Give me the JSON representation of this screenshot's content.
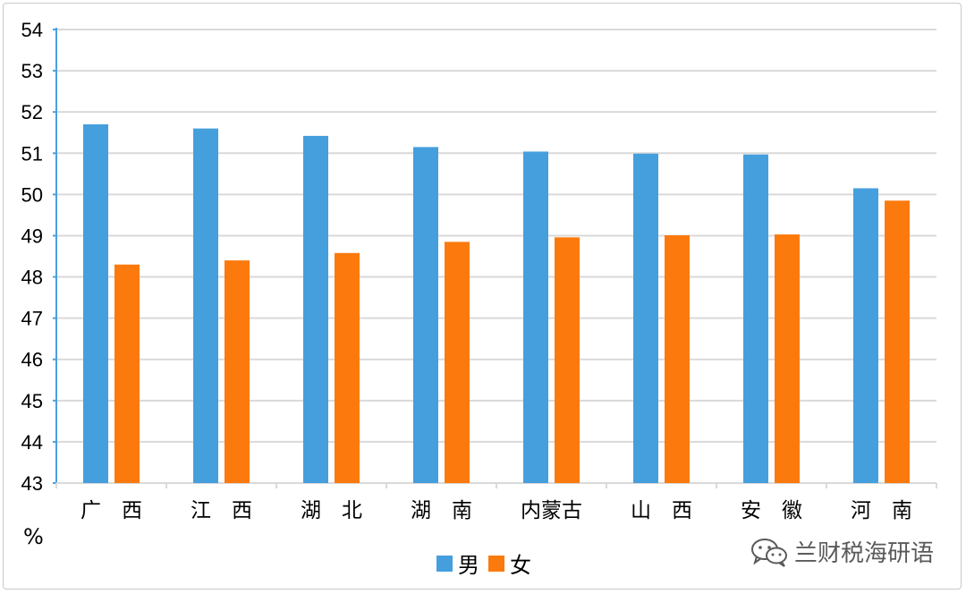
{
  "chart_data": {
    "type": "bar",
    "categories": [
      "广　西",
      "江　西",
      "湖　北",
      "湖　南",
      "内蒙古",
      "山　西",
      "安　徽",
      "河　南"
    ],
    "series": [
      {
        "name": "男",
        "color": "#469fdd",
        "values": [
          51.7,
          51.6,
          51.42,
          51.15,
          51.04,
          50.99,
          50.97,
          50.15
        ]
      },
      {
        "name": "女",
        "color": "#fc7a0d",
        "values": [
          48.3,
          48.4,
          48.58,
          48.85,
          48.96,
          49.01,
          49.03,
          49.85
        ]
      }
    ],
    "ylabel": "%",
    "ylim": [
      43,
      54
    ],
    "yticks": [
      43,
      44,
      45,
      46,
      47,
      48,
      49,
      50,
      51,
      52,
      53,
      54
    ],
    "grid": true,
    "legend": "bottom-center"
  },
  "watermark": {
    "text": "兰财税海研语",
    "icon": "wechat-icon"
  }
}
